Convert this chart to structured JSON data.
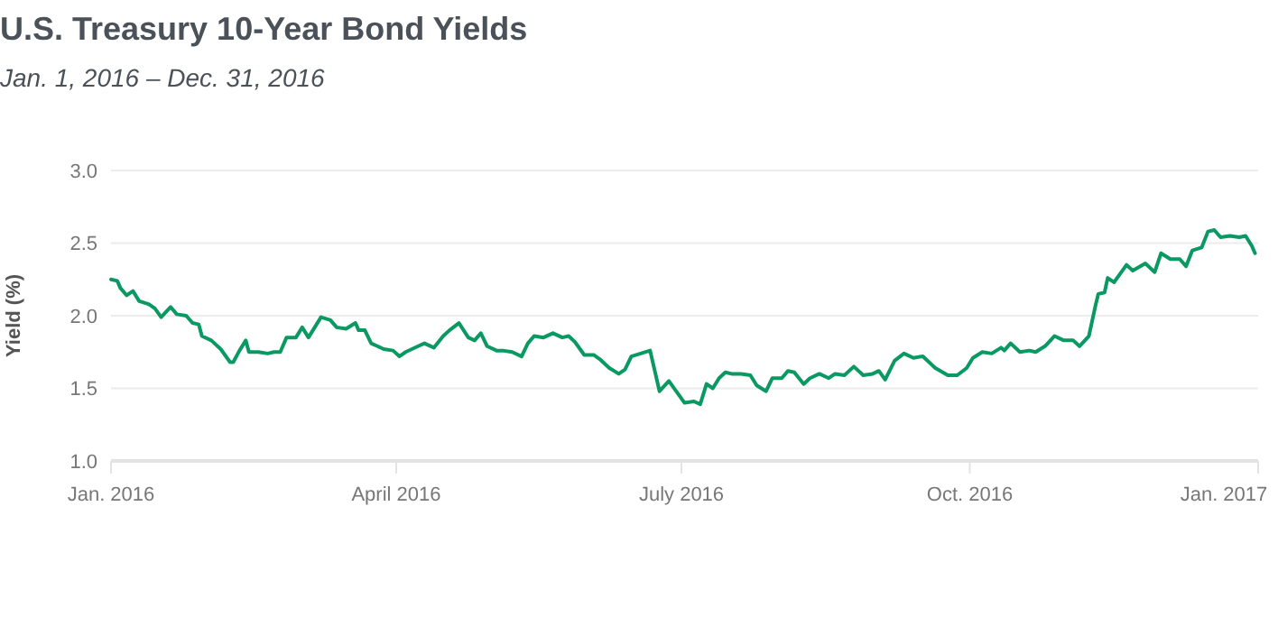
{
  "chart_data": {
    "type": "line",
    "title": "U.S. Treasury 10-Year Bond Yields",
    "subtitle": "Jan. 1, 2016 – Dec. 31, 2016",
    "ylabel": "Yield (%)",
    "x": [
      "2016-01-01",
      "2016-01-03",
      "2016-01-04",
      "2016-01-06",
      "2016-01-08",
      "2016-01-10",
      "2016-01-13",
      "2016-01-15",
      "2016-01-17",
      "2016-01-20",
      "2016-01-22",
      "2016-01-25",
      "2016-01-27",
      "2016-01-29",
      "2016-01-30",
      "2016-02-02",
      "2016-02-05",
      "2016-02-08",
      "2016-02-09",
      "2016-02-11",
      "2016-02-13",
      "2016-02-14",
      "2016-02-17",
      "2016-02-20",
      "2016-02-22",
      "2016-02-24",
      "2016-02-26",
      "2016-02-29",
      "2016-03-02",
      "2016-03-04",
      "2016-03-06",
      "2016-03-08",
      "2016-03-11",
      "2016-03-13",
      "2016-03-16",
      "2016-03-19",
      "2016-03-20",
      "2016-03-22",
      "2016-03-24",
      "2016-03-26",
      "2016-03-28",
      "2016-03-31",
      "2016-04-02",
      "2016-04-04",
      "2016-04-06",
      "2016-04-08",
      "2016-04-10",
      "2016-04-13",
      "2016-04-16",
      "2016-04-18",
      "2016-04-21",
      "2016-04-24",
      "2016-04-26",
      "2016-04-28",
      "2016-04-30",
      "2016-05-03",
      "2016-05-05",
      "2016-05-08",
      "2016-05-11",
      "2016-05-13",
      "2016-05-15",
      "2016-05-18",
      "2016-05-21",
      "2016-05-24",
      "2016-05-26",
      "2016-05-28",
      "2016-05-31",
      "2016-06-03",
      "2016-06-05",
      "2016-06-08",
      "2016-06-11",
      "2016-06-13",
      "2016-06-15",
      "2016-06-21",
      "2016-06-24",
      "2016-06-27",
      "2016-06-29",
      "2016-07-02",
      "2016-07-05",
      "2016-07-07",
      "2016-07-09",
      "2016-07-11",
      "2016-07-13",
      "2016-07-15",
      "2016-07-17",
      "2016-07-20",
      "2016-07-23",
      "2016-07-25",
      "2016-07-28",
      "2016-07-30",
      "2016-08-02",
      "2016-08-04",
      "2016-08-06",
      "2016-08-09",
      "2016-08-11",
      "2016-08-14",
      "2016-08-17",
      "2016-08-19",
      "2016-08-22",
      "2016-08-25",
      "2016-08-28",
      "2016-08-31",
      "2016-09-02",
      "2016-09-04",
      "2016-09-07",
      "2016-09-10",
      "2016-09-13",
      "2016-09-16",
      "2016-09-20",
      "2016-09-24",
      "2016-09-27",
      "2016-09-30",
      "2016-10-02",
      "2016-10-05",
      "2016-10-08",
      "2016-10-11",
      "2016-10-12",
      "2016-10-14",
      "2016-10-17",
      "2016-10-20",
      "2016-10-22",
      "2016-10-25",
      "2016-10-28",
      "2016-10-31",
      "2016-11-03",
      "2016-11-05",
      "2016-11-08",
      "2016-11-10",
      "2016-11-11",
      "2016-11-13",
      "2016-11-14",
      "2016-11-16",
      "2016-11-18",
      "2016-11-20",
      "2016-11-22",
      "2016-11-26",
      "2016-11-29",
      "2016-12-01",
      "2016-12-04",
      "2016-12-07",
      "2016-12-09",
      "2016-12-11",
      "2016-12-14",
      "2016-12-16",
      "2016-12-18",
      "2016-12-20",
      "2016-12-23",
      "2016-12-26",
      "2016-12-28",
      "2016-12-30",
      "2016-12-31"
    ],
    "series": [
      {
        "color": "#0a9962",
        "values": [
          2.25,
          2.24,
          2.19,
          2.14,
          2.17,
          2.1,
          2.08,
          2.05,
          1.99,
          2.06,
          2.01,
          2.0,
          1.95,
          1.94,
          1.86,
          1.83,
          1.77,
          1.68,
          1.68,
          1.76,
          1.83,
          1.75,
          1.75,
          1.74,
          1.75,
          1.75,
          1.85,
          1.85,
          1.92,
          1.85,
          1.92,
          1.99,
          1.97,
          1.92,
          1.91,
          1.95,
          1.9,
          1.9,
          1.81,
          1.79,
          1.77,
          1.76,
          1.72,
          1.75,
          1.77,
          1.79,
          1.81,
          1.78,
          1.86,
          1.9,
          1.95,
          1.85,
          1.83,
          1.88,
          1.79,
          1.76,
          1.76,
          1.75,
          1.72,
          1.81,
          1.86,
          1.85,
          1.88,
          1.85,
          1.86,
          1.82,
          1.73,
          1.73,
          1.7,
          1.64,
          1.6,
          1.63,
          1.72,
          1.76,
          1.48,
          1.55,
          1.49,
          1.4,
          1.41,
          1.39,
          1.53,
          1.5,
          1.57,
          1.61,
          1.6,
          1.6,
          1.59,
          1.52,
          1.48,
          1.57,
          1.57,
          1.62,
          1.61,
          1.53,
          1.57,
          1.6,
          1.57,
          1.6,
          1.59,
          1.65,
          1.59,
          1.6,
          1.62,
          1.56,
          1.69,
          1.74,
          1.71,
          1.72,
          1.64,
          1.59,
          1.59,
          1.64,
          1.71,
          1.75,
          1.74,
          1.78,
          1.76,
          1.81,
          1.75,
          1.76,
          1.75,
          1.79,
          1.86,
          1.83,
          1.83,
          1.79,
          1.86,
          2.06,
          2.15,
          2.16,
          2.26,
          2.23,
          2.29,
          2.35,
          2.31,
          2.36,
          2.3,
          2.43,
          2.39,
          2.39,
          2.34,
          2.45,
          2.47,
          2.58,
          2.59,
          2.54,
          2.55,
          2.54,
          2.55,
          2.48,
          2.43
        ]
      }
    ],
    "xlim": [
      "2016-01-01",
      "2017-01-01"
    ],
    "xticks": [
      {
        "value": "2016-01-01",
        "label": "Jan. 2016"
      },
      {
        "value": "2016-04-01",
        "label": "April 2016"
      },
      {
        "value": "2016-07-01",
        "label": "July 2016"
      },
      {
        "value": "2016-10-01",
        "label": "Oct. 2016"
      },
      {
        "value": "2017-01-01",
        "label": "Jan. 2017"
      }
    ],
    "ylim": [
      1.0,
      3.0
    ],
    "yticks": [
      {
        "value": 1.0,
        "label": "1.0"
      },
      {
        "value": 1.5,
        "label": "1.5"
      },
      {
        "value": 2.0,
        "label": "2.0"
      },
      {
        "value": 2.5,
        "label": "2.5"
      },
      {
        "value": 3.0,
        "label": "3.0"
      }
    ],
    "grid": "y",
    "marker": "none",
    "line_style": "solid"
  }
}
